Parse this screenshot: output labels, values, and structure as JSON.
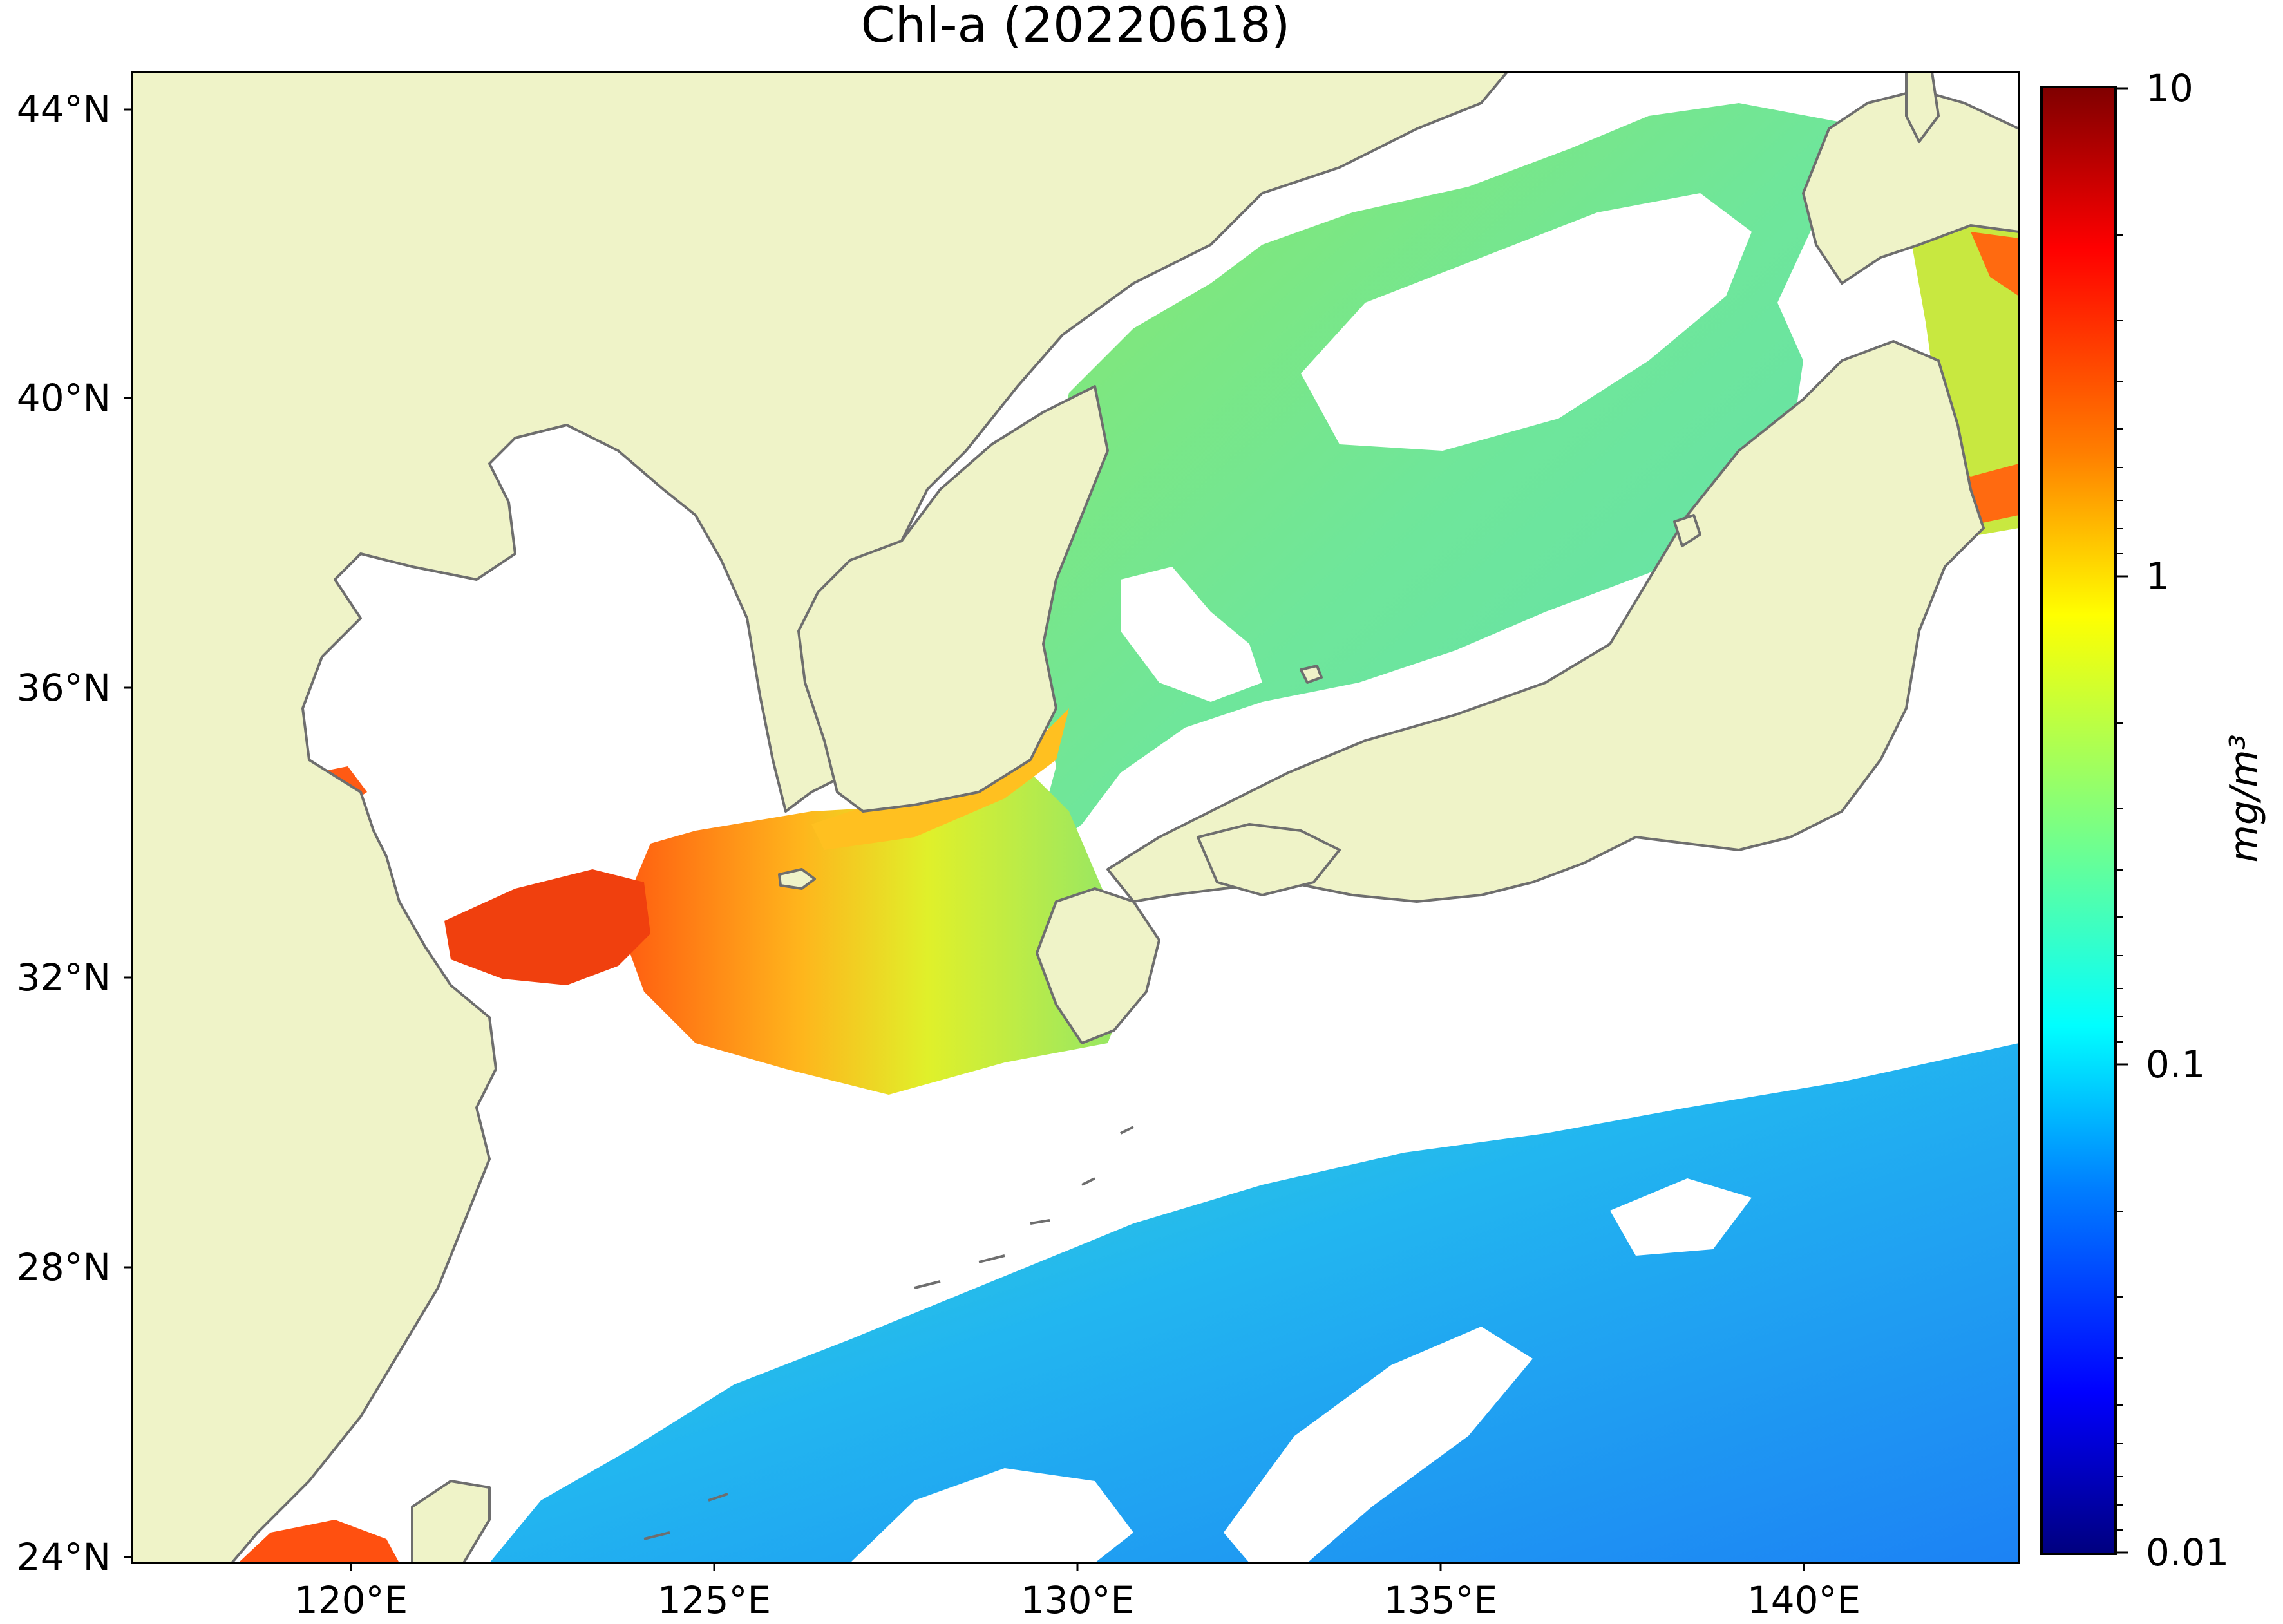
{
  "map": {
    "title": "Chl-a (20220618)",
    "lat_ticks": [
      "44°N",
      "40°N",
      "36°N",
      "32°N",
      "28°N",
      "24°N"
    ],
    "lon_ticks": [
      "120°E",
      "125°E",
      "130°E",
      "135°E",
      "140°E"
    ],
    "lat_range": [
      24,
      44.5
    ],
    "lon_range": [
      117,
      143
    ]
  },
  "colorbar": {
    "unit": "mg/m³",
    "tick_labels": [
      "10",
      "1",
      "0.1",
      "0.01"
    ],
    "range": [
      0.01,
      10
    ],
    "scale": "log",
    "colormap": "jet",
    "colors": [
      "#00007f",
      "#0000ff",
      "#007fff",
      "#00ffff",
      "#7fff7f",
      "#ffff00",
      "#ff7f00",
      "#ff0000",
      "#7f0000"
    ]
  },
  "style": {
    "land_color": "#eff3c8",
    "no_data_color": "#ffffff",
    "coastline_color": "#6e6e6e"
  }
}
